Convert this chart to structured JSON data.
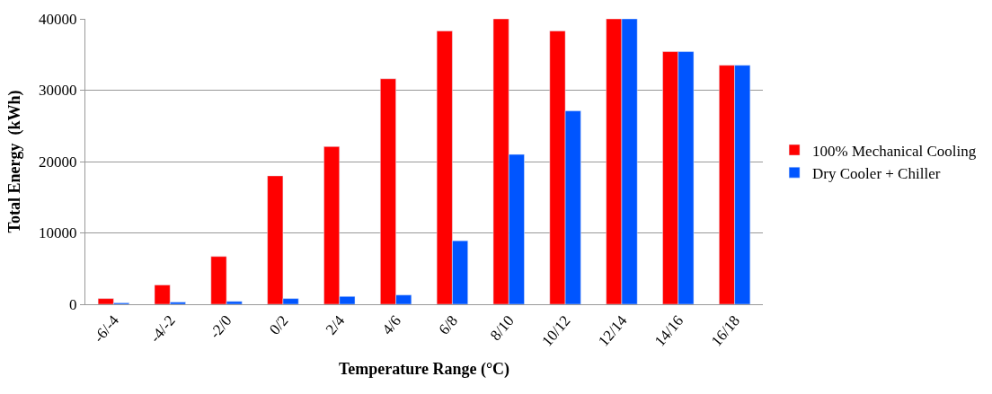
{
  "chart_data": {
    "type": "bar",
    "xlabel": "Temperature Range (°C)",
    "ylabel": "Total Energy  (kWh)",
    "categories": [
      "-6/-4",
      "-4/-2",
      "-2/0",
      "0/2",
      "2/4",
      "4/6",
      "6/8",
      "8/10",
      "10/12",
      "12/14",
      "14/16",
      "16/18"
    ],
    "series": [
      {
        "name": "100% Mechanical Cooling",
        "color": "#ff0000",
        "values": [
          800,
          2700,
          6700,
          18000,
          22100,
          31600,
          38300,
          40000,
          38300,
          40000,
          35400,
          33500
        ]
      },
      {
        "name": "Dry Cooler + Chiller",
        "color": "#0055ff",
        "values": [
          200,
          300,
          400,
          800,
          1100,
          1300,
          8900,
          21000,
          27100,
          40000,
          35400,
          33500
        ]
      }
    ],
    "ylim": [
      0,
      40000
    ],
    "yticks": [
      0,
      10000,
      20000,
      30000,
      40000
    ],
    "grid": "y",
    "legend": "right"
  }
}
